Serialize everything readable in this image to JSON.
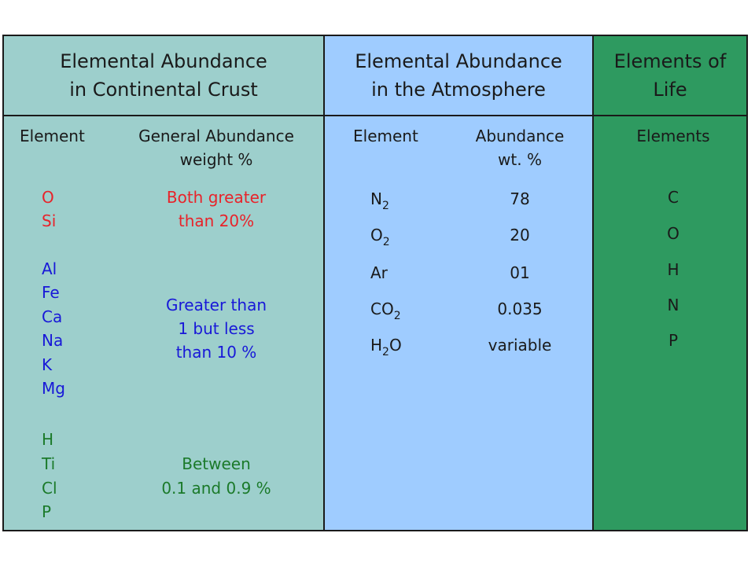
{
  "crust": {
    "title_line1": "Elemental Abundance",
    "title_line2": "in Continental Crust",
    "col_element": "Element",
    "col_abundance_line1": "General Abundance",
    "col_abundance_line2": "weight %",
    "groups": [
      {
        "elements": [
          "O",
          "Si"
        ],
        "abundance": [
          "Both greater",
          "than 20%"
        ],
        "color": "#e8232a"
      },
      {
        "elements": [
          "Al",
          "Fe",
          "Ca",
          "Na",
          "K",
          "Mg"
        ],
        "abundance": [
          "Greater than",
          "1 but less",
          "than 10 %"
        ],
        "color": "#1818d8"
      },
      {
        "elements": [
          "H",
          "Ti",
          "Cl",
          "P"
        ],
        "abundance": [
          "Between",
          "0.1 and 0.9 %"
        ],
        "color": "#1b7a2a"
      }
    ]
  },
  "atmosphere": {
    "title_line1": "Elemental Abundance",
    "title_line2": "in the Atmosphere",
    "col_element": "Element",
    "col_abundance_line1": "Abundance",
    "col_abundance_line2": "wt. %",
    "rows": [
      {
        "base": "N",
        "sub": "2",
        "post": "",
        "value": "78"
      },
      {
        "base": "O",
        "sub": "2",
        "post": "",
        "value": "20"
      },
      {
        "base": "Ar",
        "sub": "",
        "post": "",
        "value": "01"
      },
      {
        "base": "CO",
        "sub": "2",
        "post": "",
        "value": "0.035"
      },
      {
        "base": "H",
        "sub": "2",
        "post": "O",
        "value": "variable"
      }
    ]
  },
  "life": {
    "title_line1": "Elements of",
    "title_line2": "Life",
    "col_elements": "Elements",
    "elements": [
      "C",
      "O",
      "H",
      "N",
      "P"
    ]
  },
  "colors": {
    "crust_bg": "#9dcfcc",
    "atmosphere_bg": "#9fccff",
    "life_bg": "#2e9a60",
    "red": "#e8232a",
    "blue": "#1818d8",
    "green": "#1b7a2a"
  }
}
